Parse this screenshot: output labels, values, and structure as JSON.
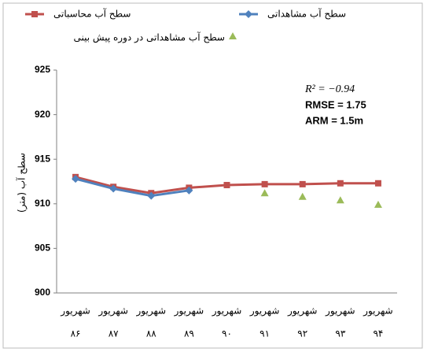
{
  "chart_data": {
    "type": "line",
    "y_axis_label": "سطح آب (متر)",
    "annotations": [
      "R² = −0.94",
      "RMSE = 1.75",
      "ARM = 1.5m"
    ],
    "categories": [
      [
        "شهریور",
        "۸۶"
      ],
      [
        "شهریور",
        "۸۷"
      ],
      [
        "شهریور",
        "۸۸"
      ],
      [
        "شهریور",
        "۸۹"
      ],
      [
        "شهریور",
        "۹۰"
      ],
      [
        "شهریور",
        "۹۱"
      ],
      [
        "شهریور",
        "۹۲"
      ],
      [
        "شهریور",
        "۹۳"
      ],
      [
        "شهریور",
        "۹۴"
      ]
    ],
    "series": [
      {
        "name": "سطح آب محاسباتی",
        "color": "#c0504d",
        "marker": "square",
        "line": true,
        "values": [
          913.0,
          911.9,
          911.2,
          911.8,
          912.1,
          912.2,
          912.2,
          912.3,
          912.3
        ]
      },
      {
        "name": "سطح آب مشاهداتی",
        "color": "#4f81bd",
        "marker": "diamond",
        "line": true,
        "values": [
          912.8,
          911.7,
          910.9,
          911.5,
          null,
          null,
          null,
          null,
          null
        ]
      },
      {
        "name": "سطح آب مشاهداتی در دوره پیش بینی",
        "color": "#9bbb59",
        "marker": "triangle",
        "line": false,
        "values": [
          null,
          null,
          null,
          null,
          null,
          911.2,
          910.8,
          910.4,
          909.9
        ]
      }
    ],
    "ylim": [
      900,
      925
    ],
    "yticks": [
      900,
      905,
      910,
      915,
      920,
      925
    ],
    "grid": false
  }
}
